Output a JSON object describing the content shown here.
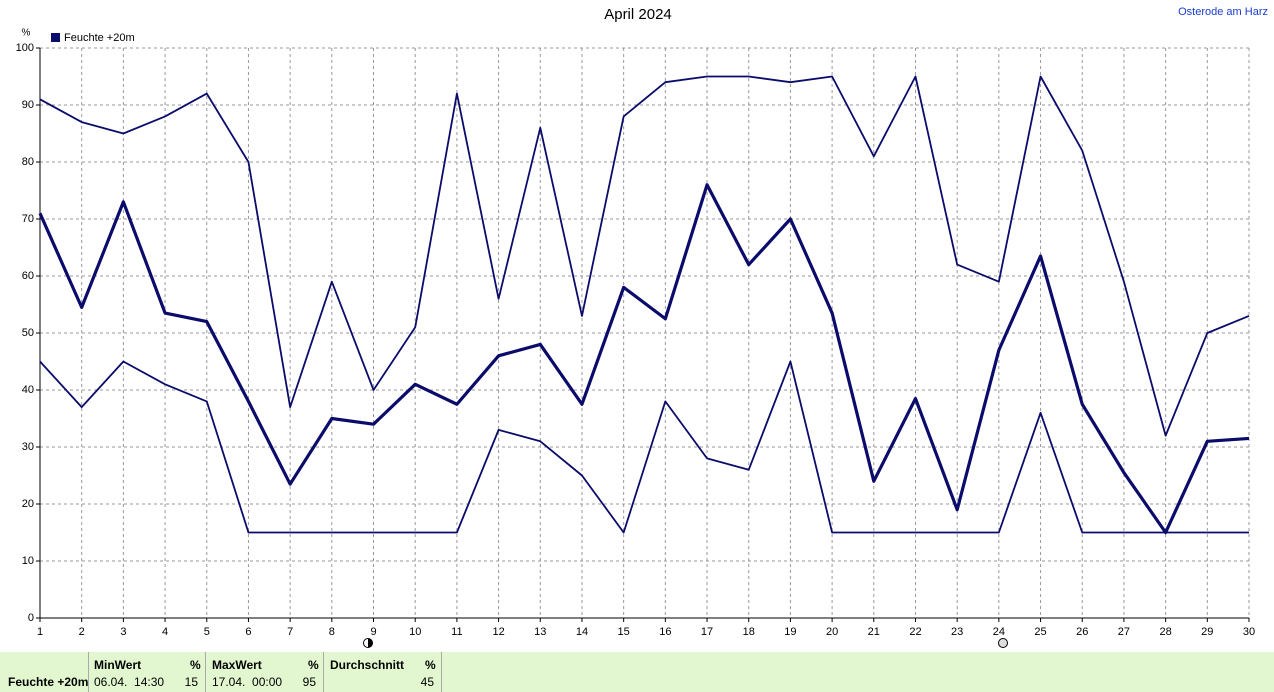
{
  "chart_data": {
    "type": "line",
    "title": "April 2024",
    "location": "Osterode am Harz",
    "y_unit": "%",
    "legend": "Feuchte +20m",
    "x": [
      1,
      2,
      3,
      4,
      5,
      6,
      7,
      8,
      9,
      10,
      11,
      12,
      13,
      14,
      15,
      16,
      17,
      18,
      19,
      20,
      21,
      22,
      23,
      24,
      25,
      26,
      27,
      28,
      29,
      30
    ],
    "xlim": [
      1,
      30
    ],
    "xticks": [
      1,
      2,
      3,
      4,
      5,
      6,
      7,
      8,
      9,
      10,
      11,
      12,
      13,
      14,
      15,
      16,
      17,
      18,
      19,
      20,
      21,
      22,
      23,
      24,
      25,
      26,
      27,
      28,
      29,
      30
    ],
    "ylim": [
      0,
      100
    ],
    "yticks": [
      0,
      10,
      20,
      30,
      40,
      50,
      60,
      70,
      80,
      90,
      100
    ],
    "grid": true,
    "series": [
      {
        "color": "#0b0b6b",
        "width": 1.8,
        "values": [
          91,
          87,
          85,
          88,
          92,
          80,
          37,
          59,
          40,
          51,
          92,
          56,
          86,
          53,
          88,
          94,
          95,
          95,
          94,
          95,
          81,
          95,
          62,
          59,
          95,
          82,
          59,
          32,
          50,
          53
        ]
      },
      {
        "color": "#0b0b6b",
        "width": 3.2,
        "values": [
          71,
          54.5,
          73,
          53.5,
          52,
          38,
          23.5,
          35,
          34,
          41,
          37.5,
          46,
          48,
          37.5,
          58,
          52.5,
          76,
          62,
          70,
          53.5,
          24,
          38.5,
          19,
          47,
          63.5,
          37.5,
          25.5,
          15,
          31,
          31.5
        ]
      },
      {
        "color": "#0b0b6b",
        "width": 1.8,
        "values": [
          45,
          37,
          45,
          41,
          38,
          15,
          15,
          15,
          15,
          15,
          15,
          33,
          31,
          25,
          15,
          38,
          28,
          26,
          45,
          15,
          15,
          15,
          15,
          15,
          36,
          15,
          15,
          15,
          15,
          15
        ]
      }
    ]
  },
  "summary": {
    "label": "Feuchte +20m",
    "min": {
      "header": "MinWert",
      "unit": "%",
      "time": "06.04.  14:30",
      "value": "15"
    },
    "max": {
      "header": "MaxWert",
      "unit": "%",
      "time": "17.04.  00:00",
      "value": "95"
    },
    "avg": {
      "header": "Durchschnitt",
      "unit": "%",
      "value": "45"
    }
  }
}
